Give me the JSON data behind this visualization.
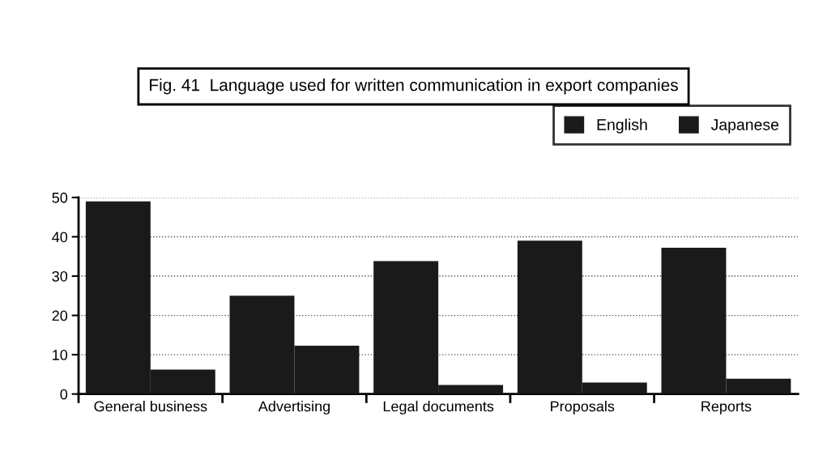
{
  "chart_data": {
    "type": "bar",
    "title": "Fig. 41  Language used for written communication in export companies",
    "categories": [
      "General business",
      "Advertising",
      "Legal documents",
      "Proposals",
      "Reports"
    ],
    "series": [
      {
        "name": "English",
        "color": "#1a1a1a",
        "values": [
          49.0,
          25.0,
          33.8,
          39.0,
          37.2
        ]
      },
      {
        "name": "Japanese",
        "color": "#1a1a1a",
        "values": [
          6.2,
          12.3,
          2.3,
          2.9,
          3.9
        ]
      }
    ],
    "ylim": [
      0,
      50
    ],
    "yticks": [
      0,
      10,
      20,
      30,
      40,
      50
    ],
    "grid": "y",
    "legend": "top right"
  }
}
